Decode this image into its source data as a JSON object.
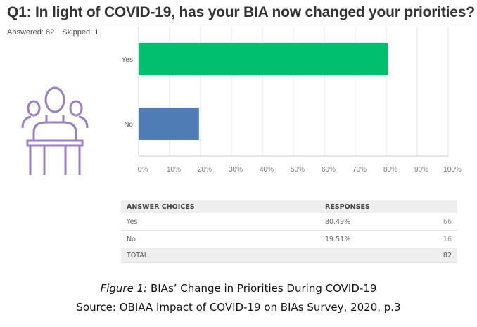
{
  "header": {
    "title": "Q1: In light of COVID-19, has your BIA now changed your priorities?",
    "answered": "Answered: 82",
    "skipped": "Skipped: 1"
  },
  "chart_data": {
    "type": "bar",
    "orientation": "horizontal",
    "categories": [
      "Yes",
      "No"
    ],
    "values": [
      80.49,
      19.51
    ],
    "colors": [
      "#00bf6f",
      "#507cb6"
    ],
    "xlim": [
      0,
      100
    ],
    "xticks": [
      "0%",
      "10%",
      "20%",
      "30%",
      "40%",
      "50%",
      "60%",
      "70%",
      "80%",
      "90%",
      "100%"
    ],
    "grid": true
  },
  "table": {
    "headers": [
      "ANSWER CHOICES",
      "RESPONSES",
      ""
    ],
    "rows": [
      [
        "Yes",
        "80.49%",
        "66"
      ],
      [
        "No",
        "19.51%",
        "16"
      ]
    ],
    "total": [
      "TOTAL",
      "",
      "82"
    ]
  },
  "caption": {
    "label": "Figure 1:",
    "text": " BIAs’ Change in Priorities During COVID-19",
    "source": "Source: OBIAA Impact of COVID-19 on BIAs Survey, 2020, p.3"
  }
}
